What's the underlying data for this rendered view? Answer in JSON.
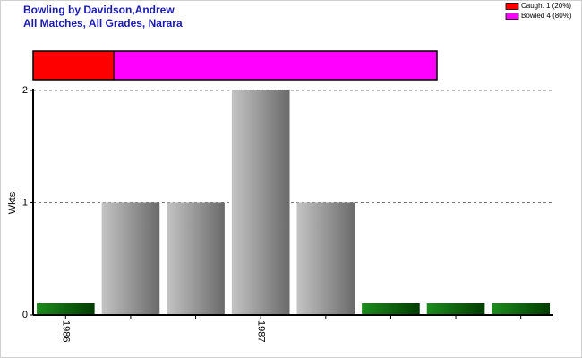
{
  "chart_data": {
    "type": "bar",
    "title": "Bowling by Davidson,Andrew",
    "subtitle": "All Matches, All Grades, Narara",
    "y_label": "Wkts",
    "categories": [
      "1986",
      null,
      null,
      "1987",
      null,
      null,
      null,
      null
    ],
    "values": [
      0,
      1,
      1,
      2,
      1,
      0,
      0,
      0
    ],
    "ylim": [
      0,
      2
    ],
    "yticks": [
      0,
      1,
      2
    ],
    "grid": true,
    "legend": "top-right",
    "breakdown": [
      {
        "name": "Caught 1 (20%)",
        "color": "#ff0000",
        "value": 1
      },
      {
        "name": "Bowled 4 (80%)",
        "color": "#ff00ff",
        "value": 4
      }
    ]
  }
}
